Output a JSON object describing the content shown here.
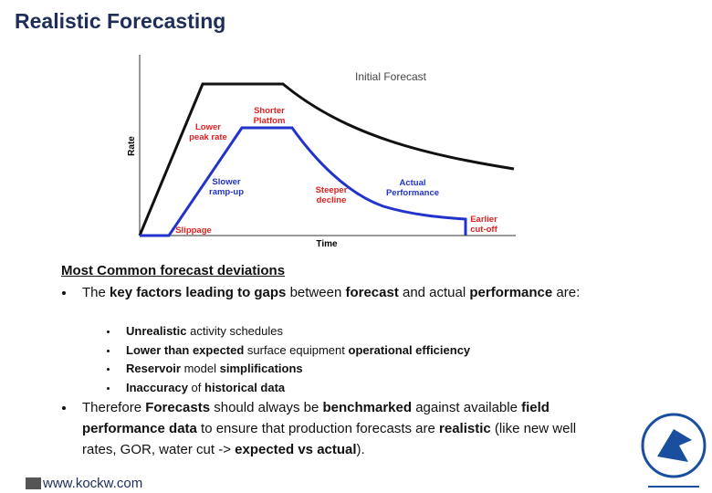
{
  "header": {
    "title": "Realistic Forecasting"
  },
  "diagram": {
    "y_axis_label": "Rate",
    "x_axis_label": "Time",
    "initial": "Initial Forecast",
    "lower_peak": [
      "Lower",
      "peak rate"
    ],
    "shorter_plateau": [
      "Shorter",
      "Platfom"
    ],
    "slower_ramp": [
      "Slower",
      "ramp-up"
    ],
    "steeper_decline": [
      "Steeper",
      "decline"
    ],
    "slippage": "Slippage",
    "earlier_cutoff": [
      "Earlier",
      "cut-off"
    ],
    "actual": [
      "Actual",
      "Performance"
    ]
  },
  "body": {
    "heading": "Most Common forecast deviations",
    "bullets": [
      {
        "runs": [
          {
            "text": "The "
          },
          {
            "text": "key factors leading to gaps",
            "bold": true
          },
          {
            "text": " between "
          },
          {
            "text": "forecast",
            "bold": true
          },
          {
            "text": " and actual "
          },
          {
            "text": "performance",
            "bold": true
          },
          {
            "text": " are:"
          }
        ],
        "sub": [
          {
            "runs": [
              {
                "text": "Unrealistic",
                "bold": true
              },
              {
                "text": " activity schedules"
              }
            ]
          },
          {
            "runs": [
              {
                "text": "Lower than expected",
                "bold": true
              },
              {
                "text": " surface equipment "
              },
              {
                "text": "operational efficiency",
                "bold": true
              }
            ]
          },
          {
            "runs": [
              {
                "text": "Reservoir",
                "bold": true
              },
              {
                "text": " model "
              },
              {
                "text": "simplifications",
                "bold": true
              }
            ]
          },
          {
            "runs": [
              {
                "text": "Inaccuracy",
                "bold": true
              },
              {
                "text": " of "
              },
              {
                "text": "historical data",
                "bold": true
              }
            ]
          }
        ]
      },
      {
        "runs": [
          {
            "text": "Therefore "
          },
          {
            "text": "Forecasts",
            "bold": true
          },
          {
            "text": " should always be "
          },
          {
            "text": "benchmarked",
            "bold": true
          },
          {
            "text": " against available "
          },
          {
            "text": "field performance data",
            "bold": true
          },
          {
            "text": " to ensure that production forecasts are "
          },
          {
            "text": "realistic",
            "bold": true
          },
          {
            "text": " (like new well rates, GOR, water cut -> "
          },
          {
            "text": "expected vs actual",
            "bold": true
          },
          {
            "text": ")."
          }
        ]
      }
    ]
  },
  "footer": {
    "url": "www.kockw.com"
  }
}
